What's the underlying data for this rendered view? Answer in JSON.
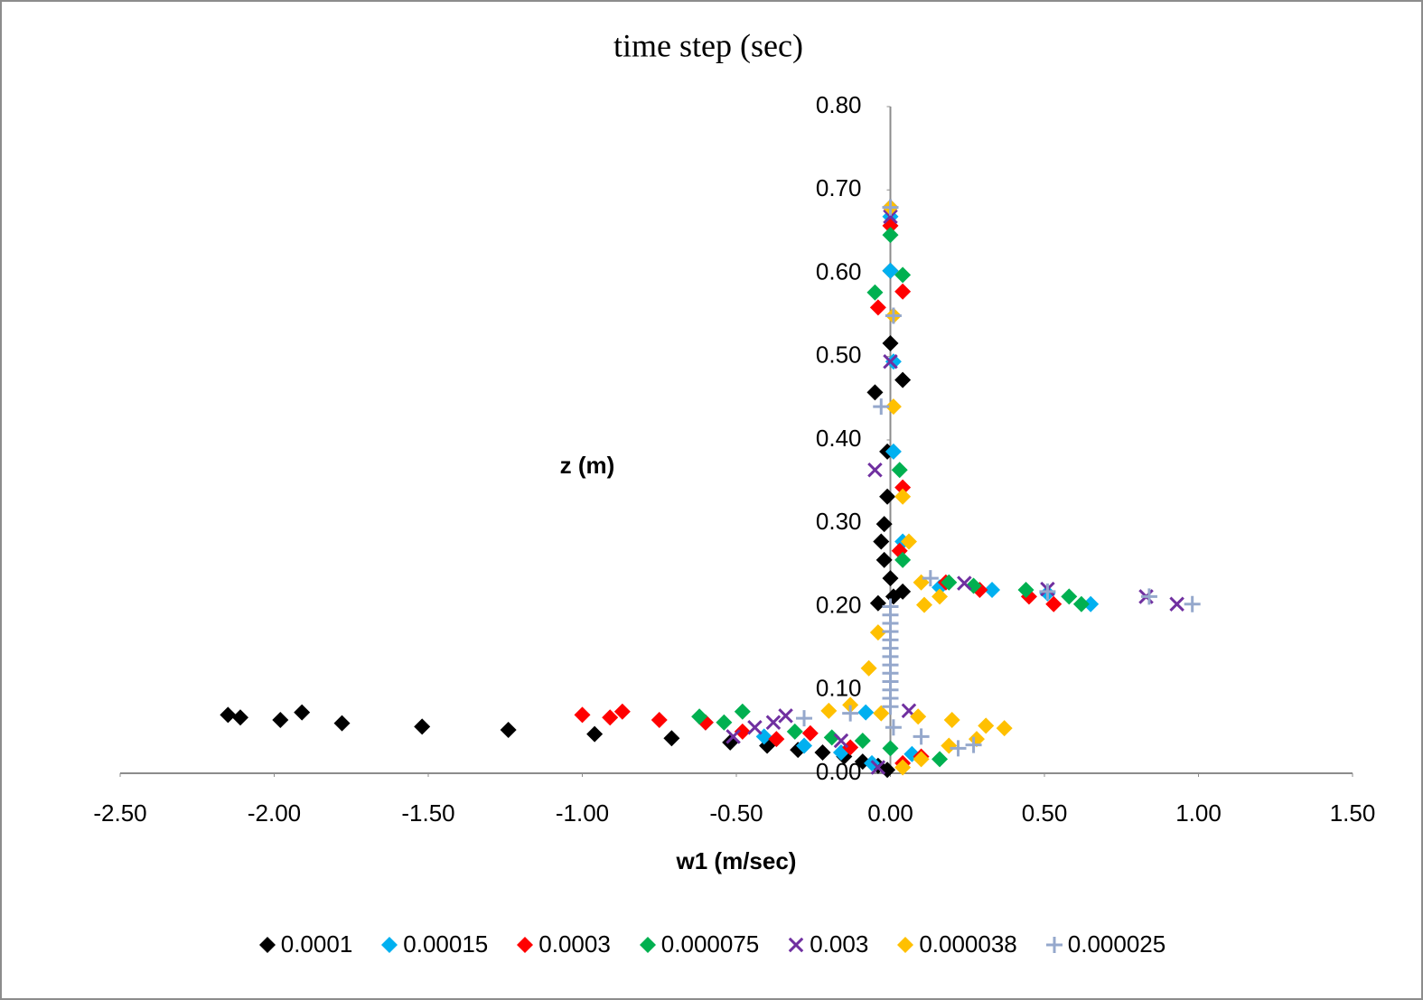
{
  "chart_data": {
    "type": "scatter",
    "title": "time step (sec)",
    "x_label": "w1 (m/sec)",
    "y_label": "z (m)",
    "xlim": [
      -2.5,
      1.5
    ],
    "ylim": [
      0,
      0.8
    ],
    "xticks": [
      {
        "value": -2.5,
        "label": "-2.50"
      },
      {
        "value": -2,
        "label": "-2.00"
      },
      {
        "value": -1.5,
        "label": "-1.50"
      },
      {
        "value": -1,
        "label": "-1.00"
      },
      {
        "value": -0.5,
        "label": "-0.50"
      },
      {
        "value": 0,
        "label": "0.00"
      },
      {
        "value": 0.5,
        "label": "0.50"
      },
      {
        "value": 1,
        "label": "1.00"
      },
      {
        "value": 1.5,
        "label": "1.50"
      }
    ],
    "yticks": [
      {
        "value": 0,
        "label": "0.00"
      },
      {
        "value": 0.1,
        "label": "0.10"
      },
      {
        "value": 0.2,
        "label": "0.20"
      },
      {
        "value": 0.3,
        "label": "0.30"
      },
      {
        "value": 0.4,
        "label": "0.40"
      },
      {
        "value": 0.5,
        "label": "0.50"
      },
      {
        "value": 0.6,
        "label": "0.60"
      },
      {
        "value": 0.7,
        "label": "0.70"
      },
      {
        "value": 0.8,
        "label": "0.80"
      }
    ],
    "legend": "bottom",
    "series": [
      {
        "name": "0.0001",
        "color": "#000000",
        "marker": "diamond",
        "x": [
          -2.15,
          -2.11,
          -1.98,
          -1.91,
          -1.78,
          -1.52,
          -1.24,
          -0.96,
          -0.71,
          -0.52,
          -0.4,
          -0.3,
          -0.22,
          -0.15,
          -0.09,
          -0.04,
          -0.01,
          -0.04,
          0.01,
          0.04,
          0,
          -0.02,
          -0.03,
          -0.02,
          -0.01,
          -0.01,
          -0.05,
          0.04,
          0,
          0,
          0
        ],
        "values": [
          0.07,
          0.067,
          0.064,
          0.073,
          0.06,
          0.056,
          0.052,
          0.047,
          0.042,
          0.037,
          0.033,
          0.028,
          0.025,
          0.02,
          0.014,
          0.009,
          0.004,
          0.204,
          0.212,
          0.218,
          0.234,
          0.256,
          0.278,
          0.299,
          0.332,
          0.386,
          0.457,
          0.472,
          0.516,
          0.603,
          0.679
        ]
      },
      {
        "name": "0.00015",
        "color": "#00b0f0",
        "marker": "diamond",
        "x": [
          -0.6,
          -0.41,
          -0.28,
          -0.16,
          -0.08,
          -0.06,
          0.07,
          0.16,
          0.33,
          0.51,
          0.65,
          0.04,
          0.01,
          0.01,
          0,
          0
        ],
        "values": [
          0.061,
          0.044,
          0.033,
          0.025,
          0.073,
          0.012,
          0.023,
          0.223,
          0.22,
          0.216,
          0.203,
          0.278,
          0.386,
          0.494,
          0.603,
          0.668
        ]
      },
      {
        "name": "0.0003",
        "color": "#ff0000",
        "marker": "diamond",
        "x": [
          -1.0,
          -0.91,
          -0.87,
          -0.75,
          -0.6,
          -0.48,
          -0.37,
          -0.26,
          -0.13,
          0.04,
          0.1,
          0.18,
          0.29,
          0.45,
          0.53,
          0.03,
          0.04,
          -0.04,
          0.04,
          0
        ],
        "values": [
          0.07,
          0.067,
          0.074,
          0.064,
          0.061,
          0.05,
          0.041,
          0.048,
          0.031,
          0.012,
          0.02,
          0.229,
          0.22,
          0.212,
          0.203,
          0.267,
          0.343,
          0.559,
          0.578,
          0.657
        ]
      },
      {
        "name": "0.000075",
        "color": "#00b050",
        "marker": "diamond",
        "x": [
          -0.62,
          -0.48,
          -0.54,
          -0.31,
          -0.19,
          -0.09,
          0,
          0.16,
          0.19,
          0.27,
          0.44,
          0.58,
          0.62,
          0.04,
          0.03,
          -0.05,
          0.04,
          0
        ],
        "values": [
          0.068,
          0.074,
          0.061,
          0.05,
          0.043,
          0.039,
          0.03,
          0.017,
          0.229,
          0.225,
          0.22,
          0.212,
          0.203,
          0.256,
          0.364,
          0.577,
          0.598,
          0.646
        ]
      },
      {
        "name": "0.003",
        "color": "#7030a0",
        "marker": "x",
        "x": [
          -0.51,
          -0.44,
          -0.38,
          -0.34,
          -0.16,
          -0.04,
          0.06,
          0.24,
          0.51,
          0.83,
          0.93,
          -0.05,
          0,
          0
        ],
        "values": [
          0.044,
          0.055,
          0.061,
          0.069,
          0.039,
          0.007,
          0.075,
          0.228,
          0.221,
          0.212,
          0.203,
          0.364,
          0.494,
          0.668
        ]
      },
      {
        "name": "0.000038",
        "color": "#ffc000",
        "marker": "diamond",
        "x": [
          -0.2,
          -0.13,
          -0.07,
          -0.04,
          -0.03,
          0.09,
          0.2,
          0.31,
          0.37,
          0.28,
          0.19,
          0.1,
          0.04,
          0.11,
          0.16,
          0.1,
          0.06,
          0.04,
          0.01,
          0.01,
          0
        ],
        "values": [
          0.075,
          0.082,
          0.126,
          0.169,
          0.072,
          0.068,
          0.064,
          0.057,
          0.054,
          0.041,
          0.033,
          0.017,
          0.007,
          0.202,
          0.212,
          0.229,
          0.278,
          0.332,
          0.44,
          0.549,
          0.679
        ]
      },
      {
        "name": "0.000025",
        "color": "#95a8cc",
        "marker": "plus",
        "x": [
          0,
          0,
          0,
          0,
          0,
          0,
          0,
          0,
          0,
          0,
          0,
          0,
          0,
          -0.28,
          -0.13,
          0.01,
          0.1,
          0.22,
          0.27,
          0.13,
          0.51,
          0.84,
          0.98,
          -0.03,
          0.01,
          0
        ],
        "values": [
          0.08,
          0.09,
          0.1,
          0.11,
          0.12,
          0.13,
          0.14,
          0.15,
          0.16,
          0.17,
          0.18,
          0.19,
          0.2,
          0.066,
          0.072,
          0.055,
          0.044,
          0.03,
          0.034,
          0.234,
          0.218,
          0.212,
          0.203,
          0.44,
          0.549,
          0.679
        ]
      }
    ]
  }
}
